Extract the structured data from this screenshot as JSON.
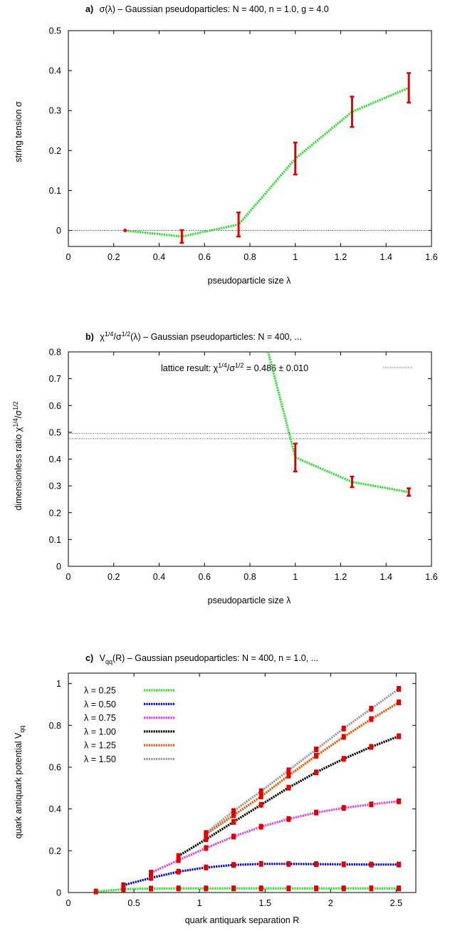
{
  "chart_data": [
    {
      "type": "line",
      "title_letter": "a)",
      "title": "σ(λ)  –  Gaussian pseudoparticles: N = 400, n = 1.0, g = 4.0",
      "xlabel": "pseudoparticle size λ",
      "ylabel": "string tension σ",
      "xlim": [
        0,
        1.6
      ],
      "ylim": [
        -0.04,
        0.5
      ],
      "xticks": [
        "0",
        "0.2",
        "0.4",
        "0.6",
        "0.8",
        "1",
        "1.2",
        "1.4",
        "1.6"
      ],
      "yticks": [
        "0",
        "0.1",
        "0.2",
        "0.3",
        "0.4",
        "0.5"
      ],
      "hline": 0,
      "series": [
        {
          "color": "#33dd33",
          "x": [
            0.25,
            0.5,
            0.75,
            1.0,
            1.25,
            1.5
          ],
          "y": [
            0.0,
            -0.015,
            0.015,
            0.18,
            0.297,
            0.357
          ],
          "err": [
            0.0,
            0.016,
            0.03,
            0.04,
            0.038,
            0.037
          ]
        }
      ]
    },
    {
      "type": "line",
      "title_letter": "b)",
      "title": "χ1/4/σ1/2(λ)  –  Gaussian pseudoparticles: N = 400, ...",
      "xlabel": "pseudoparticle size λ",
      "ylabel": "dimensionless ratio χ1/4/σ1/2",
      "xlim": [
        0,
        1.6
      ],
      "ylim": [
        0,
        0.8
      ],
      "xticks": [
        "0",
        "0.2",
        "0.4",
        "0.6",
        "0.8",
        "1",
        "1.2",
        "1.4",
        "1.6"
      ],
      "yticks": [
        "0",
        "0.1",
        "0.2",
        "0.3",
        "0.4",
        "0.5",
        "0.6",
        "0.7",
        "0.8"
      ],
      "lattice_label": "lattice result: χ1/4/σ1/2 = 0.486 ± 0.010",
      "lattice_band": [
        0.476,
        0.496
      ],
      "series": [
        {
          "color": "#33dd33",
          "x": [
            0.88,
            1.0,
            1.25,
            1.5
          ],
          "y": [
            0.8,
            0.406,
            0.315,
            0.277
          ],
          "err": [
            0,
            0.052,
            0.02,
            0.014
          ],
          "err_points": [
            1,
            2,
            3
          ]
        }
      ]
    },
    {
      "type": "line",
      "title_letter": "c)",
      "title": "Vqq(R)  –  Gaussian pseudoparticles: N = 400, n = 1.0, ...",
      "xlabel": "quark antiquark separation R",
      "ylabel": "quark antiquark potential Vqq",
      "xlim": [
        0,
        2.65
      ],
      "ylim": [
        0,
        1.05
      ],
      "xticks": [
        "0",
        "0.5",
        "1",
        "1.5",
        "2",
        "2.5"
      ],
      "yticks": [
        "0",
        "0.2",
        "0.4",
        "0.6",
        "0.8",
        "1"
      ],
      "series": [
        {
          "name": "λ = 0.25",
          "color": "#33dd33",
          "x": [
            0.21,
            0.42,
            0.63,
            0.84,
            1.05,
            1.26,
            1.47,
            1.68,
            1.89,
            2.1,
            2.31,
            2.52
          ],
          "y": [
            0.005,
            0.016,
            0.019,
            0.02,
            0.02,
            0.02,
            0.02,
            0.02,
            0.02,
            0.02,
            0.02,
            0.02
          ]
        },
        {
          "name": "λ = 0.50",
          "color": "#0000cc",
          "x": [
            0.42,
            0.63,
            0.84,
            1.05,
            1.26,
            1.47,
            1.68,
            1.89,
            2.1,
            2.31,
            2.52
          ],
          "y": [
            0.035,
            0.07,
            0.1,
            0.12,
            0.132,
            0.137,
            0.137,
            0.136,
            0.135,
            0.134,
            0.134
          ]
        },
        {
          "name": "λ = 0.75",
          "color": "#dd44dd",
          "x": [
            0.63,
            0.84,
            1.05,
            1.26,
            1.47,
            1.68,
            1.89,
            2.1,
            2.31,
            2.52
          ],
          "y": [
            0.095,
            0.155,
            0.213,
            0.268,
            0.315,
            0.352,
            0.383,
            0.405,
            0.422,
            0.437
          ]
        },
        {
          "name": "λ = 1.00",
          "color": "#000000",
          "x": [
            0.84,
            1.05,
            1.26,
            1.47,
            1.68,
            1.89,
            2.1,
            2.31,
            2.52
          ],
          "y": [
            0.175,
            0.255,
            0.338,
            0.42,
            0.502,
            0.575,
            0.64,
            0.697,
            0.748
          ]
        },
        {
          "name": "λ = 1.25",
          "color": "#ee5500",
          "x": [
            1.05,
            1.26,
            1.47,
            1.68,
            1.89,
            2.1,
            2.31,
            2.52
          ],
          "y": [
            0.28,
            0.37,
            0.46,
            0.56,
            0.655,
            0.745,
            0.83,
            0.91
          ]
        },
        {
          "name": "λ = 1.50",
          "color": "#999999",
          "x": [
            1.05,
            1.26,
            1.47,
            1.68,
            1.89,
            2.1,
            2.31,
            2.52
          ],
          "y": [
            0.285,
            0.39,
            0.485,
            0.585,
            0.685,
            0.785,
            0.88,
            0.975
          ]
        }
      ]
    }
  ]
}
